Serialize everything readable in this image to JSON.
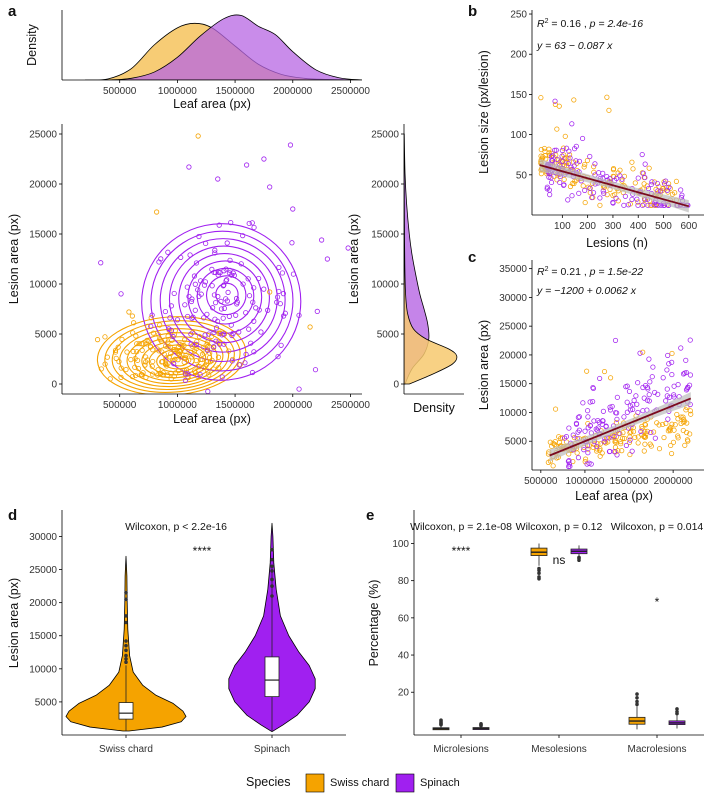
{
  "colors": {
    "swiss": "#F5A300",
    "spinach": "#A020F0",
    "swiss_fill": "#F7C96E",
    "spinach_fill": "#B765E3",
    "overlap_fill": "#BD55A6",
    "regression": "#7A0A1E",
    "ci": "#BBBBBB"
  },
  "legend": {
    "title": "Species",
    "items": [
      {
        "label": "Swiss chard",
        "color": "#F5A300"
      },
      {
        "label": "Spinach",
        "color": "#A020F0"
      }
    ]
  },
  "chart_data": [
    {
      "id": "a-top",
      "panel": "a",
      "type": "area",
      "title": "",
      "xlabel": "Leaf area (px)",
      "ylabel": "Density",
      "xlim": [
        0,
        2600000
      ],
      "xticks": [
        500000,
        1000000,
        1500000,
        2000000,
        2500000
      ],
      "xtick_labels": [
        "500000",
        "1000000",
        "1500000",
        "2000000",
        "2500000"
      ],
      "series": [
        {
          "name": "Swiss chard",
          "x": [
            200000,
            400000,
            600000,
            800000,
            1000000,
            1150000,
            1300000,
            1500000,
            1700000,
            1900000,
            2100000,
            2300000,
            2600000
          ],
          "density": [
            0.0,
            0.02,
            0.2,
            0.62,
            0.92,
            1.0,
            0.92,
            0.6,
            0.28,
            0.1,
            0.03,
            0.01,
            0.0
          ]
        },
        {
          "name": "Spinach",
          "x": [
            400000,
            600000,
            800000,
            1000000,
            1200000,
            1400000,
            1550000,
            1700000,
            1850000,
            2000000,
            2200000,
            2400000,
            2600000
          ],
          "density": [
            0.0,
            0.03,
            0.14,
            0.4,
            0.78,
            1.08,
            1.14,
            0.95,
            0.8,
            0.5,
            0.18,
            0.04,
            0.0
          ]
        }
      ]
    },
    {
      "id": "a-main",
      "panel": "a",
      "type": "scatter",
      "title": "",
      "xlabel": "Leaf area (px)",
      "ylabel": "Lesion area (px)",
      "xlim": [
        0,
        2600000
      ],
      "ylim": [
        -1000,
        26000
      ],
      "xticks": [
        500000,
        1000000,
        1500000,
        2000000,
        2500000
      ],
      "xtick_labels": [
        "500000",
        "1000000",
        "1500000",
        "2000000",
        "2500000"
      ],
      "yticks": [
        0,
        5000,
        10000,
        15000,
        20000,
        25000
      ],
      "ytick_labels": [
        "0",
        "5000",
        "10000",
        "15000",
        "20000",
        "25000"
      ],
      "overlay": "2D density contours per species",
      "series": [
        {
          "name": "Swiss chard",
          "center": [
            950000,
            2800
          ],
          "spread": [
            280000,
            1700
          ],
          "points_shown": [
            [
              1180000,
              24800
            ],
            [
              820000,
              17200
            ],
            [
              580000,
              7200
            ],
            [
              2150000,
              5700
            ],
            [
              610000,
              6800
            ],
            [
              640000,
              4800
            ],
            [
              1800000,
              9200
            ]
          ]
        },
        {
          "name": "Spinach",
          "center": [
            1380000,
            8200
          ],
          "spread": [
            300000,
            3400
          ],
          "points_shown": [
            [
              1980000,
              23900
            ],
            [
              2480000,
              13600
            ],
            [
              1750000,
              22500
            ],
            [
              1100000,
              21700
            ],
            [
              1800000,
              19700
            ],
            [
              1350000,
              20500
            ],
            [
              2300000,
              12500
            ],
            [
              2250000,
              14400
            ],
            [
              2000000,
              17500
            ],
            [
              1600000,
              21900
            ]
          ]
        }
      ]
    },
    {
      "id": "a-side",
      "panel": "a",
      "type": "area",
      "title": "",
      "xlabel": "Density",
      "ylabel": "Lesion area (px)",
      "ylim": [
        -1000,
        26000
      ],
      "yticks": [
        0,
        5000,
        10000,
        15000,
        20000,
        25000
      ],
      "ytick_labels": [
        "0",
        "5000",
        "10000",
        "15000",
        "20000",
        "25000"
      ],
      "series": [
        {
          "name": "Swiss chard",
          "y": [
            0,
            1000,
            2000,
            2800,
            3500,
            4500,
            5500,
            7000,
            9000,
            12000,
            16000,
            20000,
            25000
          ],
          "density": [
            0.1,
            0.55,
            0.92,
            1.0,
            0.85,
            0.42,
            0.18,
            0.07,
            0.03,
            0.015,
            0.008,
            0.004,
            0.0
          ]
        },
        {
          "name": "Spinach",
          "y": [
            0,
            1500,
            3000,
            4500,
            6000,
            7500,
            9000,
            11000,
            13000,
            15000,
            18000,
            21000,
            25000
          ],
          "density": [
            0.02,
            0.15,
            0.38,
            0.47,
            0.45,
            0.38,
            0.3,
            0.22,
            0.15,
            0.1,
            0.05,
            0.02,
            0.005
          ]
        }
      ]
    },
    {
      "id": "b",
      "panel": "b",
      "type": "scatter",
      "title": "",
      "xlabel": "Lesions (n)",
      "ylabel": "Lesion size (px/lesion)",
      "xlim": [
        -20,
        660
      ],
      "ylim": [
        0,
        255
      ],
      "xticks": [
        100,
        200,
        300,
        400,
        500,
        600
      ],
      "xtick_labels": [
        "100",
        "200",
        "300",
        "400",
        "500",
        "600"
      ],
      "yticks": [
        50,
        100,
        150,
        200,
        250
      ],
      "ytick_labels": [
        "50",
        "100",
        "150",
        "200",
        "250"
      ],
      "regression": {
        "intercept": 63,
        "slope": -0.087,
        "x_range": [
          10,
          600
        ]
      },
      "annotations": {
        "r2": "0.16",
        "p": "2.4e-16",
        "eq_left": "y = 63 − 0.087",
        "eq_var": "x",
        "r2_prefix": "R",
        "r2_suffix": " = 0.16 , ",
        "p_text": "p = 2.4e-16"
      },
      "series": [
        {
          "name": "Swiss chard",
          "x_range": [
            15,
            560
          ],
          "median_y": 52
        },
        {
          "name": "Spinach",
          "x_range": [
            40,
            600
          ],
          "median_y": 48
        }
      ]
    },
    {
      "id": "c",
      "panel": "c",
      "type": "scatter",
      "title": "",
      "xlabel": "Leaf area (px)",
      "ylabel": "Lesion area (px)",
      "xlim": [
        400000,
        2350000
      ],
      "ylim": [
        0,
        36500
      ],
      "xticks": [
        500000,
        1000000,
        1500000,
        2000000
      ],
      "xtick_labels": [
        "500000",
        "1000000",
        "1500000",
        "2000000"
      ],
      "yticks": [
        5000,
        10000,
        15000,
        20000,
        25000,
        30000,
        35000
      ],
      "ytick_labels": [
        "5000",
        "10000",
        "15000",
        "20000",
        "25000",
        "30000",
        "35000"
      ],
      "regression": {
        "intercept": -1200,
        "slope": 0.0062,
        "x_range": [
          600000,
          2200000
        ]
      },
      "annotations": {
        "r2": "0.21",
        "p": "1.5e-22",
        "eq_left": "y = −1200 + 0.0062",
        "eq_var": "x",
        "r2_prefix": "R",
        "r2_suffix": " = 0.21 , ",
        "p_text": "p = 1.5e-22"
      },
      "series": [
        {
          "name": "Swiss chard",
          "x_range": [
            580000,
            2200000
          ],
          "median_y": 4000
        },
        {
          "name": "Spinach",
          "x_range": [
            750000,
            2200000
          ],
          "median_y": 9000
        }
      ]
    },
    {
      "id": "d",
      "panel": "d",
      "type": "violin",
      "title": "",
      "xlabel": "",
      "ylabel": "Lesion area (px)",
      "categories": [
        "Swiss chard",
        "Spinach"
      ],
      "ylim": [
        0,
        34000
      ],
      "yticks": [
        5000,
        10000,
        15000,
        20000,
        25000,
        30000
      ],
      "ytick_labels": [
        "5000",
        "10000",
        "15000",
        "20000",
        "25000",
        "30000"
      ],
      "test_label": "Wilcoxon, p < 2.2e-16",
      "significance": "****",
      "series": [
        {
          "name": "Swiss chard",
          "min": 600,
          "q1": 2400,
          "median": 3300,
          "q3": 4900,
          "max": 27000,
          "outliers": [
            11000,
            11500,
            12000,
            12800,
            13500,
            14200,
            17000,
            18000,
            20500,
            21500
          ]
        },
        {
          "name": "Spinach",
          "min": 500,
          "q1": 5800,
          "median": 8300,
          "q3": 11800,
          "max": 32000,
          "outliers": [
            21000,
            22500,
            23500,
            24800,
            25500,
            26500,
            28000
          ]
        }
      ]
    },
    {
      "id": "e",
      "panel": "e",
      "type": "box",
      "title": "",
      "xlabel": "",
      "ylabel": "Percentage (%)",
      "categories": [
        "Microlesions",
        "Mesolesions",
        "Macrolesions"
      ],
      "ylim": [
        -3,
        118
      ],
      "yticks": [
        20,
        40,
        60,
        80,
        100
      ],
      "ytick_labels": [
        "20",
        "40",
        "60",
        "80",
        "100"
      ],
      "tests": [
        {
          "label": "Wilcoxon, p = 2.1e-08",
          "significance": "****"
        },
        {
          "label": "Wilcoxon, p = 0.12",
          "significance": "ns"
        },
        {
          "label": "Wilcoxon, p = 0.014",
          "significance": "*"
        }
      ],
      "series": [
        {
          "name": "Swiss chard",
          "boxes": [
            {
              "q1": 0.0,
              "median": 0.4,
              "q3": 0.9,
              "min": 0.0,
              "max": 2.2,
              "outliers": [
                2.5,
                3.0,
                3.5,
                4.2,
                5.0
              ]
            },
            {
              "q1": 93.5,
              "median": 95.3,
              "q3": 97.5,
              "min": 88,
              "max": 100,
              "outliers": [
                81,
                82,
                84,
                85.5,
                86.5
              ]
            },
            {
              "q1": 2.8,
              "median": 4.5,
              "q3": 6.5,
              "min": 0.0,
              "max": 12.5,
              "outliers": [
                13.5,
                15,
                17,
                19
              ]
            }
          ]
        },
        {
          "name": "Spinach",
          "boxes": [
            {
              "q1": 0.2,
              "median": 0.5,
              "q3": 1.0,
              "min": 0.0,
              "max": 1.6,
              "outliers": [
                2.0,
                2.5,
                3.0
              ]
            },
            {
              "q1": 94.5,
              "median": 95.8,
              "q3": 97.0,
              "min": 93,
              "max": 99,
              "outliers": [
                91,
                92,
                92.5
              ]
            },
            {
              "q1": 2.6,
              "median": 3.5,
              "q3": 4.6,
              "min": 0.5,
              "max": 7.8,
              "outliers": [
                8.5,
                9.5,
                11
              ]
            }
          ]
        }
      ]
    }
  ]
}
